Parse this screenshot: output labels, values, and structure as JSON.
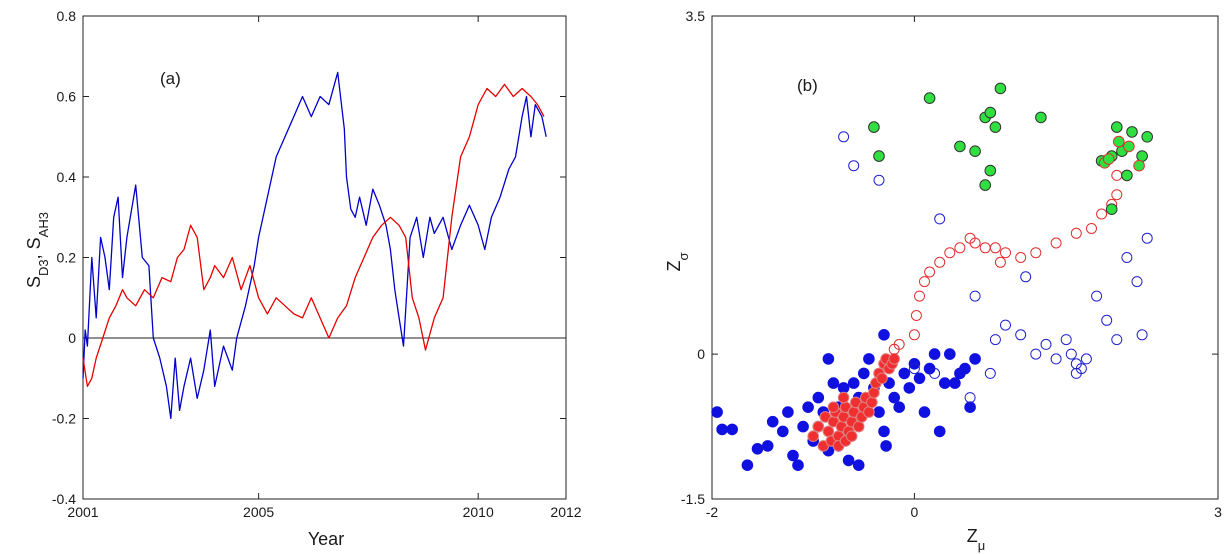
{
  "chart_data": [
    {
      "type": "line",
      "panel_label": "(a)",
      "xlabel": "Year",
      "ylabel_main": "S",
      "ylabel_sub1": "D3",
      "ylabel_sep": ", S",
      "ylabel_sub2": "AH3",
      "xlim": [
        2001,
        2012
      ],
      "ylim": [
        -0.4,
        0.8
      ],
      "xticks": [
        2001,
        2005,
        2010,
        2012
      ],
      "xtick_labels": [
        "2001",
        "2005",
        "2010",
        "2012"
      ],
      "yticks": [
        -0.4,
        -0.2,
        0,
        0.2,
        0.4,
        0.6,
        0.8
      ],
      "ytick_labels": [
        "-0.4",
        "-0.2",
        "0",
        "0.2",
        "0.4",
        "0.6",
        "0.8"
      ],
      "zero_line": 0,
      "grid": false,
      "series": [
        {
          "color": "#0000cc",
          "x": [
            2001.0,
            2001.05,
            2001.1,
            2001.2,
            2001.3,
            2001.4,
            2001.5,
            2001.6,
            2001.7,
            2001.8,
            2001.9,
            2002.0,
            2002.2,
            2002.35,
            2002.5,
            2002.6,
            2002.75,
            2002.9,
            2003.0,
            2003.1,
            2003.2,
            2003.3,
            2003.45,
            2003.6,
            2003.75,
            2003.9,
            2004.0,
            2004.2,
            2004.4,
            2004.5,
            2004.7,
            2004.9,
            2005.0,
            2005.2,
            2005.4,
            2005.6,
            2005.8,
            2006.0,
            2006.2,
            2006.4,
            2006.6,
            2006.8,
            2006.95,
            2007.0,
            2007.1,
            2007.2,
            2007.3,
            2007.45,
            2007.6,
            2007.75,
            2007.9,
            2008.0,
            2008.1,
            2008.2,
            2008.3,
            2008.45,
            2008.6,
            2008.75,
            2008.9,
            2009.0,
            2009.2,
            2009.4,
            2009.6,
            2009.8,
            2010.0,
            2010.15,
            2010.3,
            2010.5,
            2010.7,
            2010.85,
            2011.0,
            2011.1,
            2011.2,
            2011.3,
            2011.45,
            2011.55
          ],
          "y": [
            -0.1,
            0.02,
            -0.02,
            0.2,
            0.05,
            0.25,
            0.2,
            0.12,
            0.3,
            0.35,
            0.15,
            0.25,
            0.38,
            0.2,
            0.18,
            0.0,
            -0.05,
            -0.12,
            -0.2,
            -0.05,
            -0.18,
            -0.12,
            -0.05,
            -0.15,
            -0.08,
            0.02,
            -0.12,
            -0.02,
            -0.08,
            0.0,
            0.08,
            0.18,
            0.25,
            0.35,
            0.45,
            0.5,
            0.55,
            0.6,
            0.55,
            0.6,
            0.58,
            0.66,
            0.52,
            0.4,
            0.32,
            0.3,
            0.35,
            0.28,
            0.37,
            0.33,
            0.28,
            0.22,
            0.12,
            0.05,
            -0.02,
            0.25,
            0.3,
            0.2,
            0.3,
            0.26,
            0.3,
            0.22,
            0.28,
            0.33,
            0.28,
            0.22,
            0.3,
            0.35,
            0.42,
            0.45,
            0.55,
            0.6,
            0.5,
            0.58,
            0.55,
            0.5
          ]
        },
        {
          "color": "#e60000",
          "x": [
            2001.0,
            2001.1,
            2001.2,
            2001.3,
            2001.45,
            2001.6,
            2001.75,
            2001.9,
            2002.0,
            2002.2,
            2002.4,
            2002.6,
            2002.8,
            2003.0,
            2003.15,
            2003.3,
            2003.45,
            2003.6,
            2003.75,
            2003.9,
            2004.0,
            2004.2,
            2004.4,
            2004.6,
            2004.8,
            2005.0,
            2005.2,
            2005.4,
            2005.6,
            2005.8,
            2006.0,
            2006.2,
            2006.4,
            2006.6,
            2006.8,
            2007.0,
            2007.2,
            2007.4,
            2007.6,
            2007.8,
            2008.0,
            2008.2,
            2008.35,
            2008.5,
            2008.65,
            2008.8,
            2009.0,
            2009.2,
            2009.4,
            2009.6,
            2009.8,
            2010.0,
            2010.2,
            2010.4,
            2010.6,
            2010.8,
            2011.0,
            2011.2,
            2011.35,
            2011.5
          ],
          "y": [
            -0.05,
            -0.12,
            -0.1,
            -0.05,
            0.0,
            0.05,
            0.08,
            0.12,
            0.1,
            0.08,
            0.12,
            0.1,
            0.15,
            0.14,
            0.2,
            0.22,
            0.28,
            0.25,
            0.12,
            0.15,
            0.18,
            0.15,
            0.2,
            0.12,
            0.18,
            0.1,
            0.06,
            0.1,
            0.08,
            0.06,
            0.05,
            0.1,
            0.05,
            0.0,
            0.05,
            0.08,
            0.15,
            0.2,
            0.25,
            0.28,
            0.3,
            0.28,
            0.25,
            0.1,
            0.05,
            -0.03,
            0.05,
            0.1,
            0.3,
            0.45,
            0.5,
            0.58,
            0.62,
            0.6,
            0.63,
            0.6,
            0.62,
            0.6,
            0.58,
            0.55
          ]
        }
      ]
    },
    {
      "type": "scatter",
      "panel_label": "(b)",
      "xlabel_main": "Z",
      "xlabel_sub": "μ",
      "ylabel_main": "Z",
      "ylabel_sub": "σ",
      "xlim": [
        -2,
        3
      ],
      "ylim": [
        -1.5,
        3.5
      ],
      "xticks": [
        -2,
        0,
        3
      ],
      "xtick_labels": [
        "-2",
        "0",
        "3"
      ],
      "yticks": [
        -1.5,
        0,
        3.5
      ],
      "ytick_labels": [
        "-1.5",
        "0",
        "3.5"
      ],
      "grid": false,
      "groups": [
        {
          "marker": "filled",
          "fill": "#1010e0",
          "stroke": "#1010e0",
          "points": [
            [
              -1.95,
              -0.6
            ],
            [
              -1.9,
              -0.78
            ],
            [
              -1.8,
              -0.78
            ],
            [
              -1.65,
              -1.15
            ],
            [
              -1.55,
              -0.98
            ],
            [
              -1.45,
              -0.95
            ],
            [
              -1.4,
              -0.7
            ],
            [
              -1.3,
              -0.8
            ],
            [
              -1.25,
              -0.6
            ],
            [
              -1.2,
              -1.05
            ],
            [
              -1.15,
              -1.15
            ],
            [
              -1.1,
              -0.75
            ],
            [
              -1.05,
              -0.55
            ],
            [
              -1.0,
              -0.9
            ],
            [
              -0.95,
              -0.45
            ],
            [
              -0.9,
              -0.6
            ],
            [
              -0.85,
              -0.05
            ],
            [
              -0.8,
              -0.3
            ],
            [
              -0.75,
              -0.55
            ],
            [
              -0.7,
              -0.85
            ],
            [
              -0.65,
              -1.1
            ],
            [
              -0.6,
              -0.7
            ],
            [
              -0.55,
              -0.45
            ],
            [
              -0.5,
              -0.2
            ],
            [
              -0.45,
              -0.5
            ],
            [
              -0.4,
              -0.35
            ],
            [
              -0.35,
              -0.6
            ],
            [
              -0.3,
              -0.8
            ],
            [
              -0.28,
              -0.95
            ],
            [
              -0.25,
              -0.3
            ],
            [
              -0.2,
              -0.45
            ],
            [
              -0.15,
              -0.55
            ],
            [
              -0.1,
              -0.2
            ],
            [
              -0.05,
              -0.35
            ],
            [
              0.0,
              -0.1
            ],
            [
              0.05,
              -0.25
            ],
            [
              0.1,
              -0.6
            ],
            [
              0.15,
              -0.15
            ],
            [
              0.2,
              0.0
            ],
            [
              0.25,
              -0.8
            ],
            [
              0.3,
              -0.3
            ],
            [
              0.35,
              0.0
            ],
            [
              0.4,
              -0.3
            ],
            [
              0.45,
              -0.2
            ],
            [
              0.5,
              -0.15
            ],
            [
              0.55,
              -0.55
            ],
            [
              0.6,
              -0.05
            ],
            [
              -0.3,
              0.2
            ],
            [
              -0.45,
              -0.05
            ],
            [
              -0.55,
              -1.15
            ],
            [
              -0.85,
              -1.0
            ],
            [
              -0.75,
              -0.95
            ],
            [
              -0.7,
              -0.35
            ],
            [
              -0.6,
              -0.3
            ],
            [
              -0.5,
              -0.6
            ],
            [
              -0.95,
              -0.75
            ]
          ]
        },
        {
          "marker": "filled",
          "fill": "#f03030",
          "stroke": "#e08080",
          "points": [
            [
              -1.0,
              -0.85
            ],
            [
              -0.95,
              -0.75
            ],
            [
              -0.9,
              -0.95
            ],
            [
              -0.88,
              -0.65
            ],
            [
              -0.85,
              -0.8
            ],
            [
              -0.82,
              -0.9
            ],
            [
              -0.8,
              -0.7
            ],
            [
              -0.78,
              -0.6
            ],
            [
              -0.75,
              -0.85
            ],
            [
              -0.72,
              -0.75
            ],
            [
              -0.7,
              -0.65
            ],
            [
              -0.68,
              -0.55
            ],
            [
              -0.65,
              -0.8
            ],
            [
              -0.62,
              -0.7
            ],
            [
              -0.6,
              -0.6
            ],
            [
              -0.58,
              -0.5
            ],
            [
              -0.55,
              -0.75
            ],
            [
              -0.52,
              -0.65
            ],
            [
              -0.5,
              -0.55
            ],
            [
              -0.48,
              -0.45
            ],
            [
              -0.45,
              -0.6
            ],
            [
              -0.42,
              -0.5
            ],
            [
              -0.4,
              -0.4
            ],
            [
              -0.38,
              -0.3
            ],
            [
              -0.35,
              -0.2
            ],
            [
              -0.32,
              -0.25
            ],
            [
              -0.3,
              -0.1
            ],
            [
              -0.28,
              -0.05
            ],
            [
              -0.25,
              -0.15
            ],
            [
              -0.22,
              -0.1
            ],
            [
              -0.2,
              -0.05
            ],
            [
              -0.75,
              -0.95
            ],
            [
              -0.68,
              -0.9
            ],
            [
              -0.62,
              -0.85
            ],
            [
              -0.8,
              -0.55
            ],
            [
              -0.7,
              -0.45
            ]
          ]
        },
        {
          "marker": "open",
          "fill": "none",
          "stroke": "#e03030",
          "points": [
            [
              -0.2,
              0.05
            ],
            [
              -0.15,
              0.1
            ],
            [
              0.0,
              0.2
            ],
            [
              0.02,
              0.4
            ],
            [
              0.05,
              0.6
            ],
            [
              0.1,
              0.75
            ],
            [
              0.15,
              0.85
            ],
            [
              0.25,
              0.95
            ],
            [
              0.35,
              1.05
            ],
            [
              0.45,
              1.1
            ],
            [
              0.55,
              1.2
            ],
            [
              0.6,
              1.15
            ],
            [
              0.7,
              1.1
            ],
            [
              0.8,
              1.1
            ],
            [
              0.85,
              0.95
            ],
            [
              0.9,
              1.05
            ],
            [
              1.05,
              1.0
            ],
            [
              1.2,
              1.05
            ],
            [
              1.4,
              1.15
            ],
            [
              1.6,
              1.25
            ],
            [
              1.75,
              1.3
            ],
            [
              1.85,
              1.45
            ],
            [
              1.95,
              1.55
            ],
            [
              2.0,
              1.65
            ],
            [
              2.0,
              1.85
            ]
          ]
        },
        {
          "marker": "open",
          "fill": "none",
          "stroke": "#2020d0",
          "points": [
            [
              -0.7,
              2.25
            ],
            [
              -0.6,
              1.95
            ],
            [
              -0.35,
              1.8
            ],
            [
              0.0,
              -0.15
            ],
            [
              0.2,
              -0.2
            ],
            [
              0.25,
              1.4
            ],
            [
              0.55,
              -0.45
            ],
            [
              0.6,
              0.6
            ],
            [
              0.75,
              -0.2
            ],
            [
              0.8,
              0.15
            ],
            [
              0.9,
              0.3
            ],
            [
              1.05,
              0.2
            ],
            [
              1.1,
              0.8
            ],
            [
              1.2,
              0.0
            ],
            [
              1.3,
              0.1
            ],
            [
              1.4,
              -0.05
            ],
            [
              1.5,
              0.15
            ],
            [
              1.55,
              0.0
            ],
            [
              1.6,
              -0.1
            ],
            [
              1.65,
              -0.15
            ],
            [
              1.7,
              -0.05
            ],
            [
              1.8,
              0.6
            ],
            [
              1.9,
              0.35
            ],
            [
              2.0,
              0.15
            ],
            [
              2.1,
              1.0
            ],
            [
              2.2,
              0.75
            ],
            [
              2.25,
              0.2
            ],
            [
              2.3,
              1.2
            ],
            [
              1.6,
              -0.2
            ]
          ]
        },
        {
          "marker": "filled",
          "fill": "#30e040",
          "stroke": "#333333",
          "points": [
            [
              -0.4,
              2.35
            ],
            [
              -0.35,
              2.05
            ],
            [
              0.15,
              2.65
            ],
            [
              0.45,
              2.15
            ],
            [
              0.6,
              2.1
            ],
            [
              0.7,
              2.45
            ],
            [
              0.75,
              2.5
            ],
            [
              0.8,
              2.35
            ],
            [
              0.85,
              2.75
            ],
            [
              1.25,
              2.45
            ],
            [
              0.75,
              1.9
            ],
            [
              0.7,
              1.75
            ],
            [
              1.85,
              2.0
            ],
            [
              1.95,
              2.05
            ],
            [
              2.0,
              2.35
            ],
            [
              2.05,
              2.1
            ],
            [
              2.1,
              1.85
            ],
            [
              2.15,
              2.3
            ],
            [
              2.25,
              2.05
            ],
            [
              2.3,
              2.25
            ],
            [
              1.95,
              1.5
            ]
          ]
        },
        {
          "marker": "filled",
          "fill": "#30e040",
          "stroke": "#e03030",
          "points": [
            [
              1.88,
              1.98
            ],
            [
              1.92,
              2.02
            ],
            [
              2.02,
              2.2
            ],
            [
              2.12,
              2.15
            ],
            [
              2.22,
              1.95
            ]
          ]
        }
      ]
    }
  ]
}
